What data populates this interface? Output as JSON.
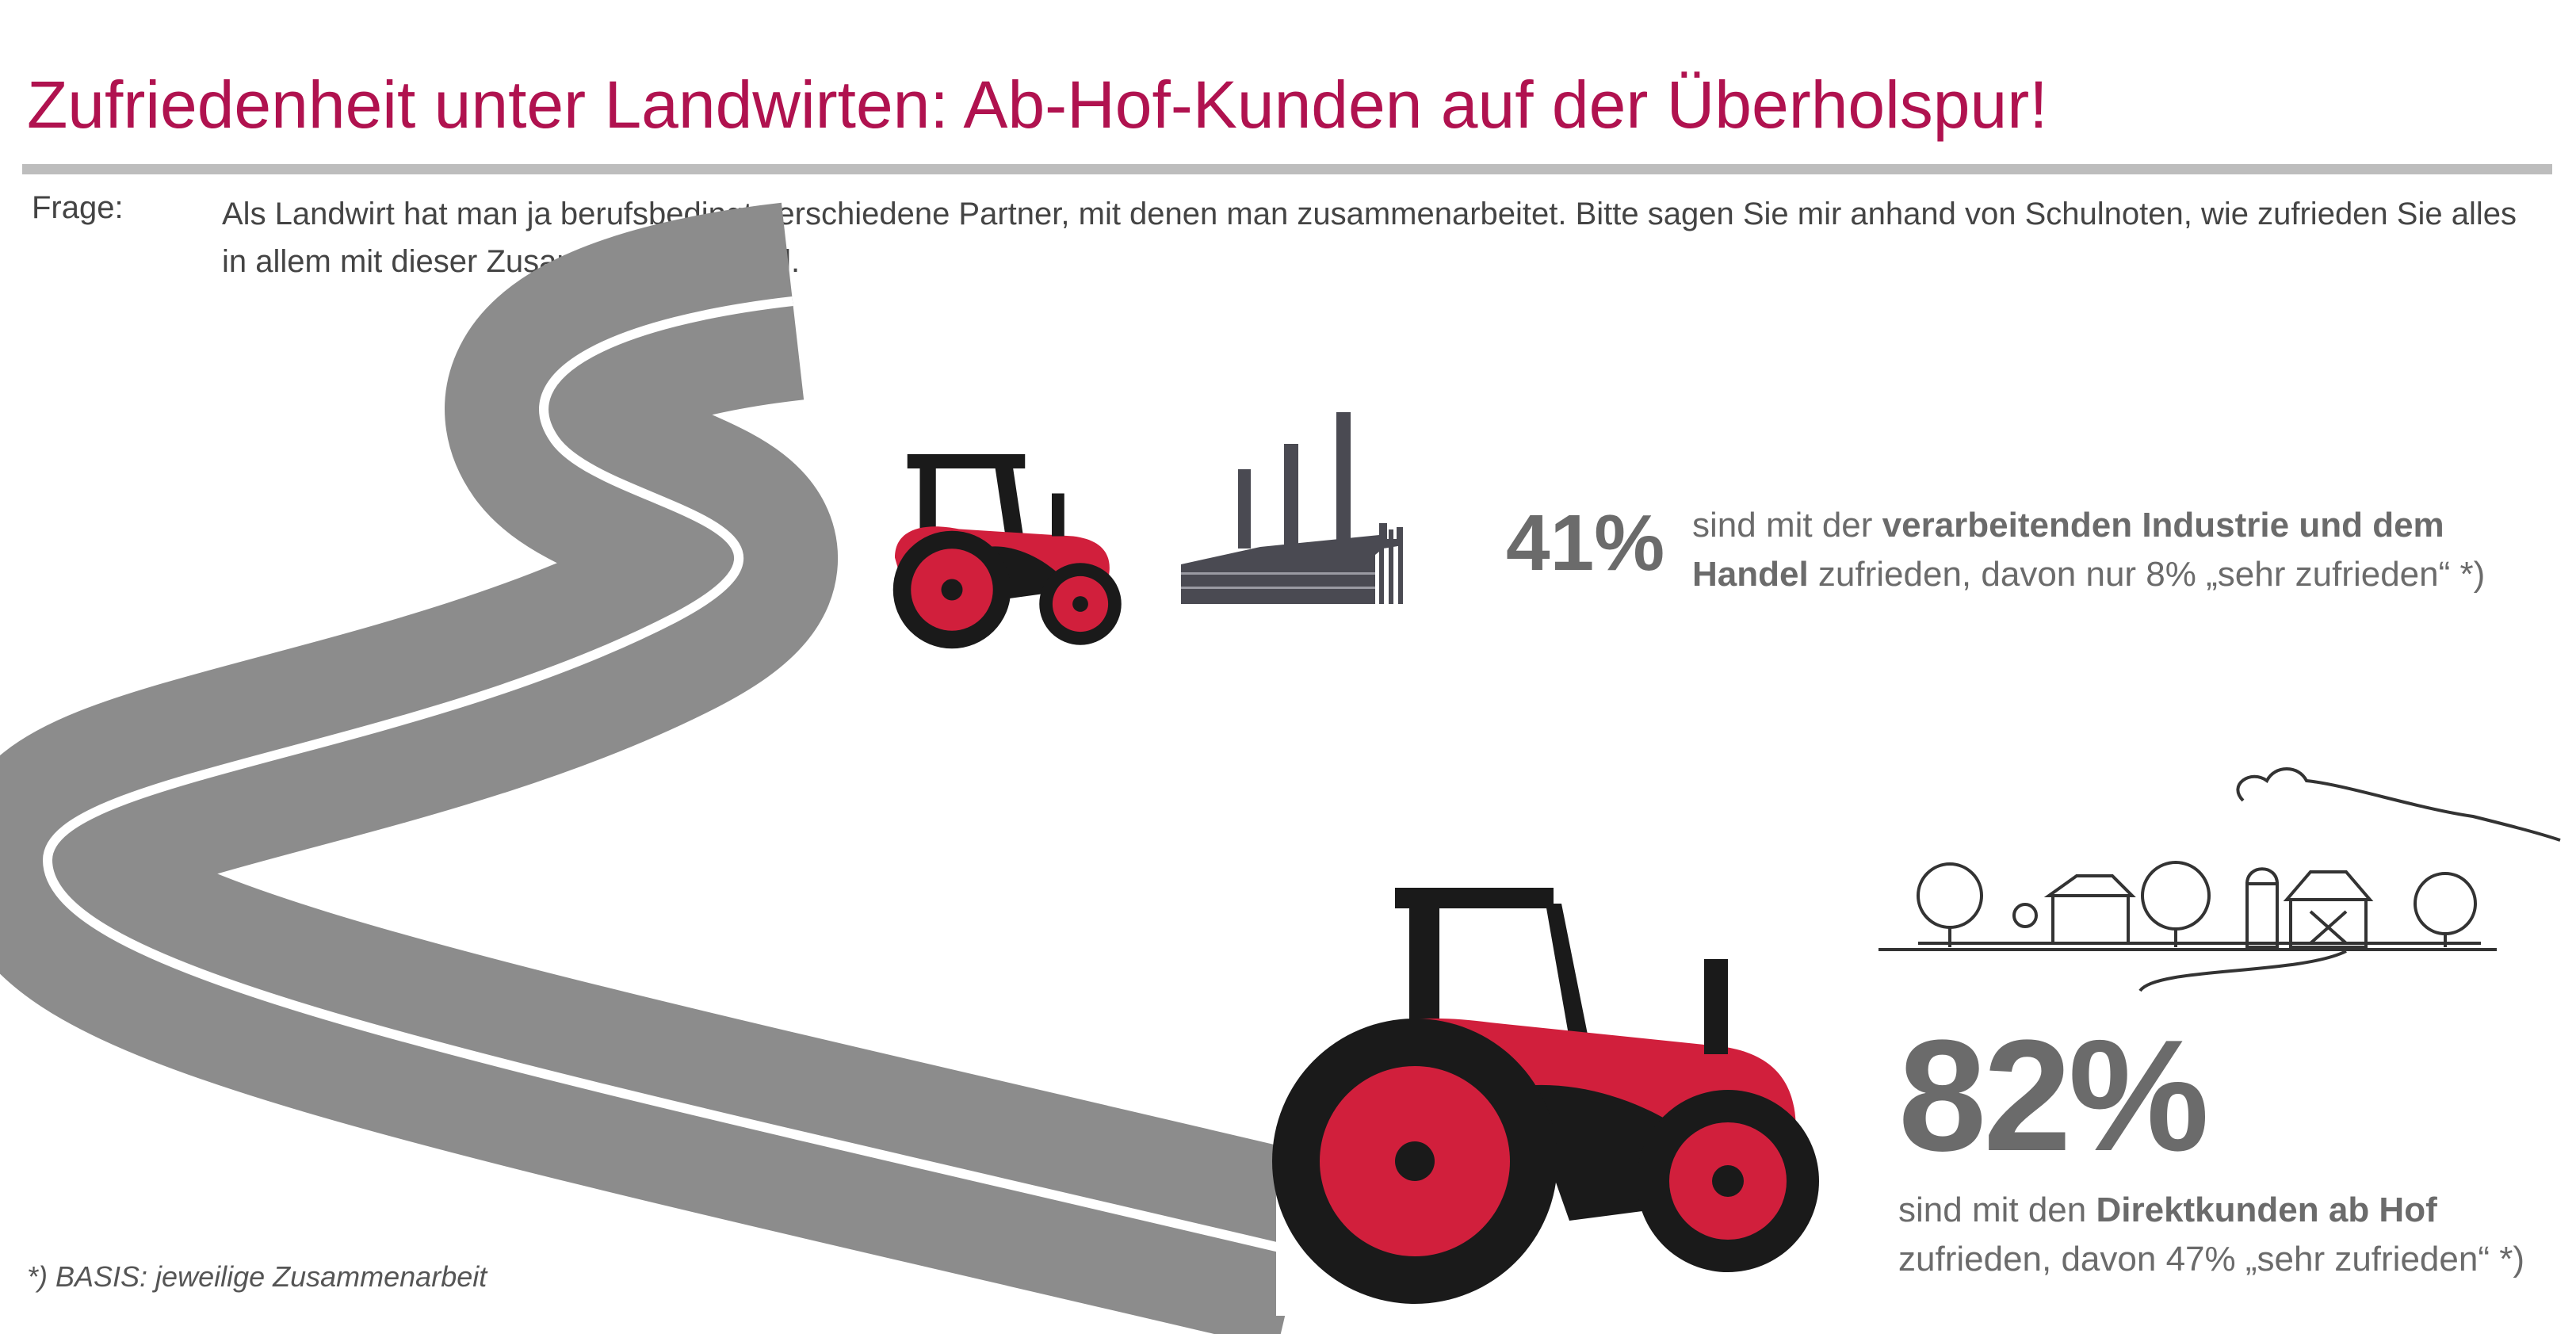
{
  "title": "Zufriedenheit unter Landwirten: Ab-Hof-Kunden auf der Überholspur!",
  "question": {
    "label": "Frage:",
    "text": "Als Landwirt hat man ja berufsbedingt verschiedene Partner, mit denen man zusammenarbeitet. Bitte sagen Sie mir anhand von Schulnoten, wie zufrieden Sie alles in allem mit dieser Zusammenarbeit sind."
  },
  "stat_industry": {
    "percent": "41%",
    "text_pre": "sind mit der ",
    "text_bold": "verarbeitenden Industrie und dem Handel",
    "text_post": " zufrieden, davon nur 8% „sehr zufrieden“ *)"
  },
  "stat_direct": {
    "percent": "82%",
    "text_pre": "sind mit den ",
    "text_bold": "Direktkunden ab Hof",
    "text_post": " zufrieden, davon 47% „sehr zufrieden“ *)"
  },
  "footnote": "*) BASIS: jeweilige Zusammenarbeit",
  "colors": {
    "title": "#b0124f",
    "accent_red": "#d11f3c",
    "text_gray": "#6b6b6b",
    "road": "#8c8c8c"
  },
  "icons": [
    "road-illustration",
    "tractor-icon",
    "factory-icon",
    "farm-landscape-icon"
  ]
}
